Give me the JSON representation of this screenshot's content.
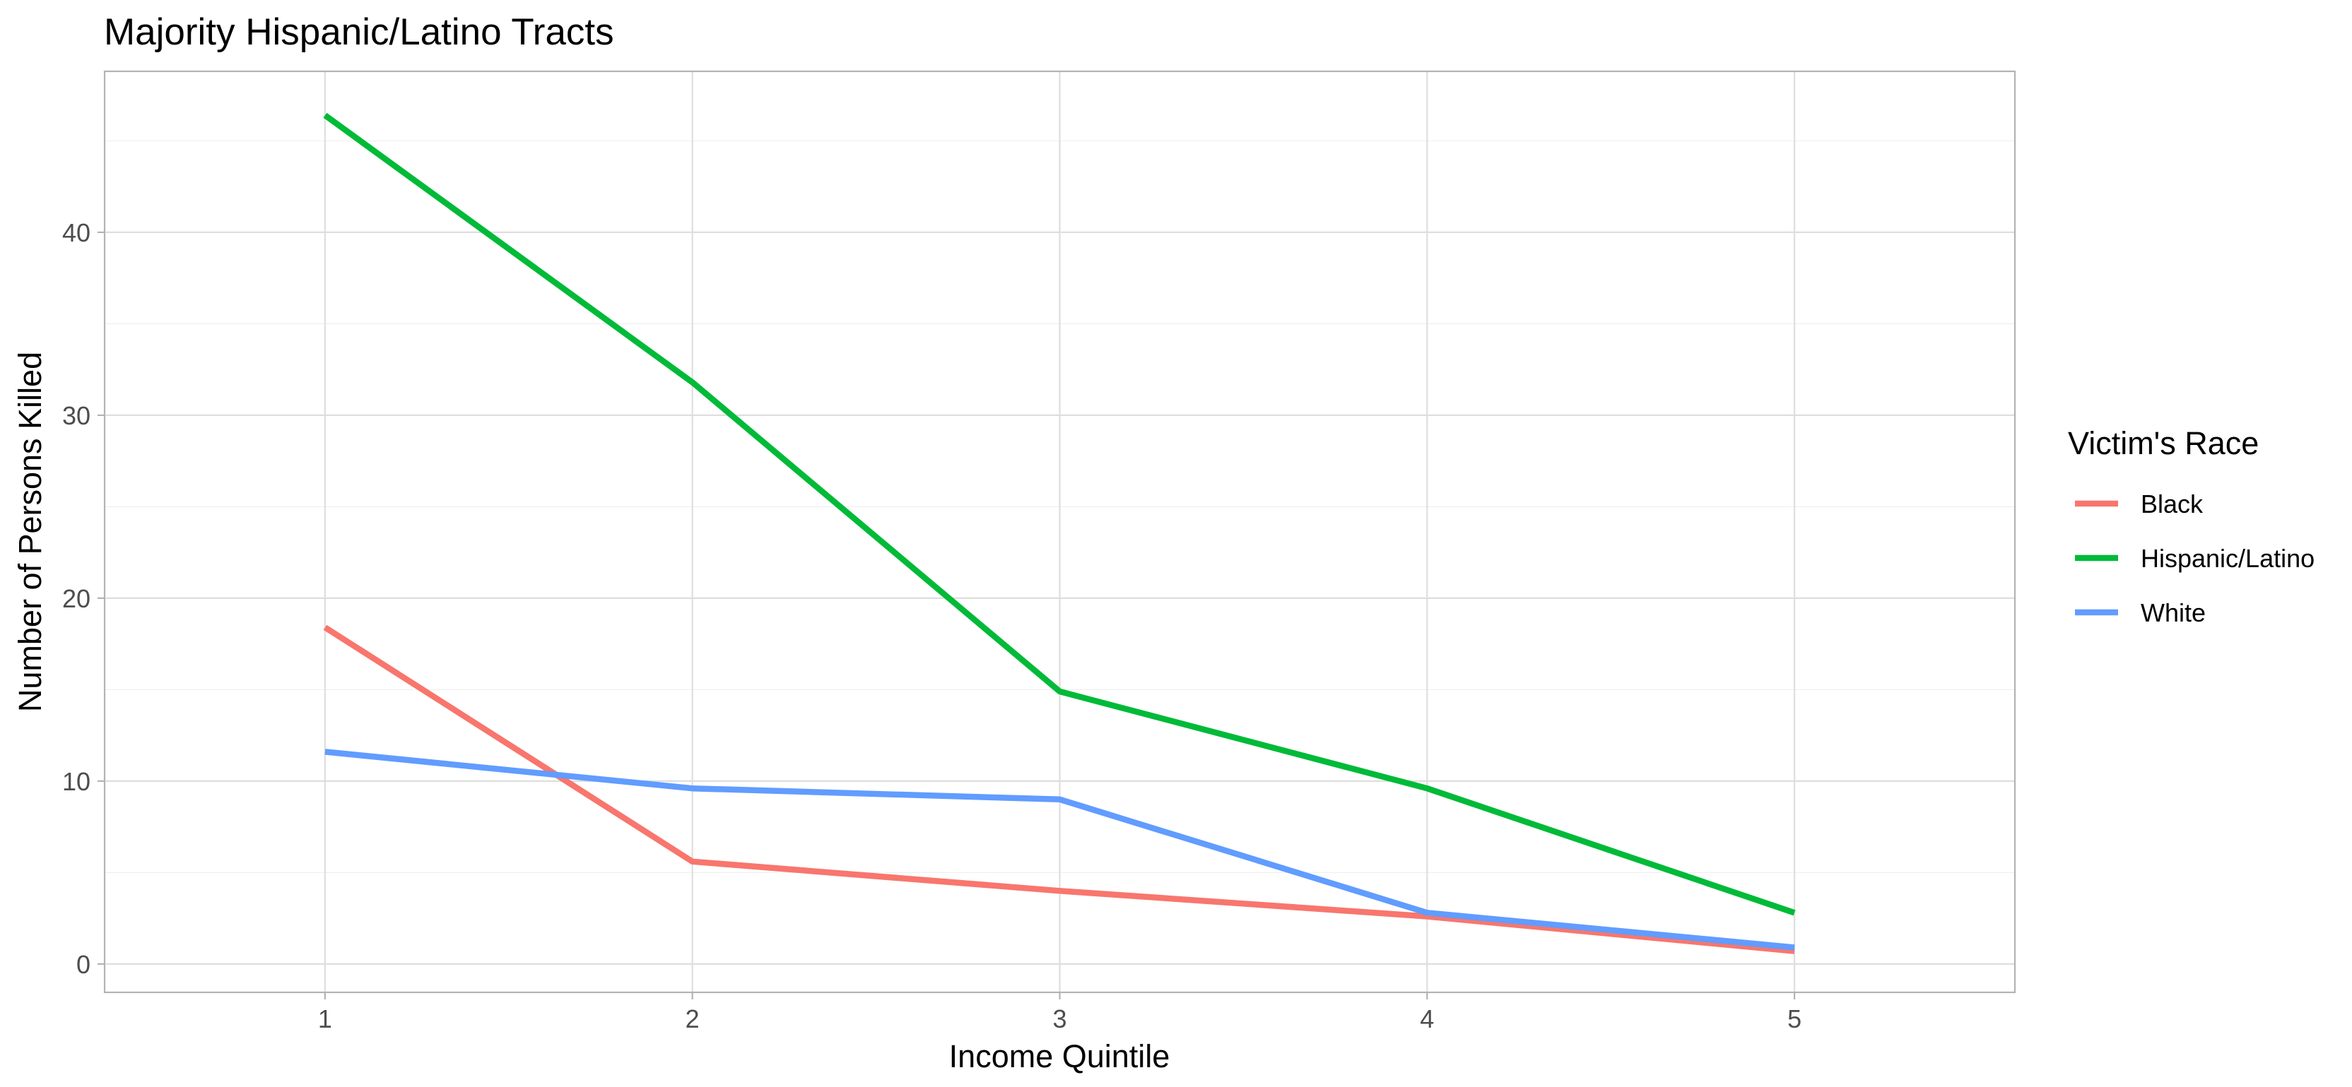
{
  "chart_data": {
    "type": "line",
    "title": "Majority Hispanic/Latino Tracts",
    "xlabel": "Income Quintile",
    "ylabel": "Number of Persons Killed",
    "x": [
      1,
      2,
      3,
      4,
      5
    ],
    "xlim": [
      0.4,
      5.6
    ],
    "ylim": [
      -1.55,
      48.8
    ],
    "x_ticks": [
      "1",
      "2",
      "3",
      "4",
      "5"
    ],
    "y_ticks": [
      0,
      10,
      20,
      30,
      40
    ],
    "y_tick_labels": [
      "0",
      "10",
      "20",
      "30",
      "40"
    ],
    "grid": true,
    "legend": {
      "title": "Victim's Race",
      "position": "right"
    },
    "series": [
      {
        "name": "Black",
        "color": "#F8766D",
        "values": [
          18.4,
          5.6,
          4.0,
          2.6,
          0.7
        ]
      },
      {
        "name": "Hispanic/Latino",
        "color": "#00BA38",
        "values": [
          46.4,
          31.8,
          14.9,
          9.6,
          2.8
        ]
      },
      {
        "name": "White",
        "color": "#619CFF",
        "values": [
          11.6,
          9.6,
          9.0,
          2.8,
          0.9
        ]
      }
    ]
  }
}
